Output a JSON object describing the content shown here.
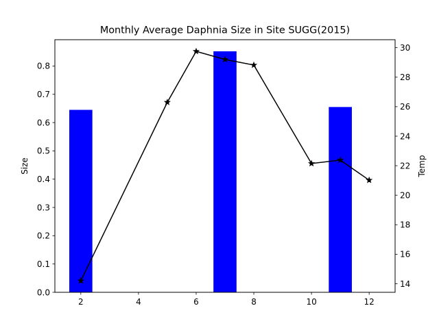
{
  "chart_data": {
    "type": "bar+line",
    "title": "Monthly Average Daphnia Size in Site SUGG(2015)",
    "xlabel": "",
    "ylabel": "Size",
    "y2label": "Temp",
    "xlim": [
      1.1,
      12.9
    ],
    "ylim": [
      0,
      0.893
    ],
    "y2lim": [
      13.42,
      30.54
    ],
    "xticks": [
      2,
      4,
      6,
      8,
      10,
      12
    ],
    "yticks": [
      0.0,
      0.1,
      0.2,
      0.3,
      0.4,
      0.5,
      0.6,
      0.7,
      0.8
    ],
    "y2ticks": [
      14,
      16,
      18,
      20,
      22,
      24,
      26,
      28,
      30
    ],
    "bar_width": 0.8,
    "grid": false,
    "bars": {
      "axis": "left",
      "color": "#0000ff",
      "x": [
        2,
        7,
        11
      ],
      "values": [
        0.645,
        0.852,
        0.655
      ]
    },
    "line": {
      "axis": "right",
      "color": "#000000",
      "marker": "star",
      "x": [
        2,
        5,
        6,
        7,
        8,
        10,
        11,
        12
      ],
      "values": [
        14.2,
        26.3,
        29.75,
        29.2,
        28.82,
        22.15,
        22.38,
        21.02
      ]
    }
  }
}
